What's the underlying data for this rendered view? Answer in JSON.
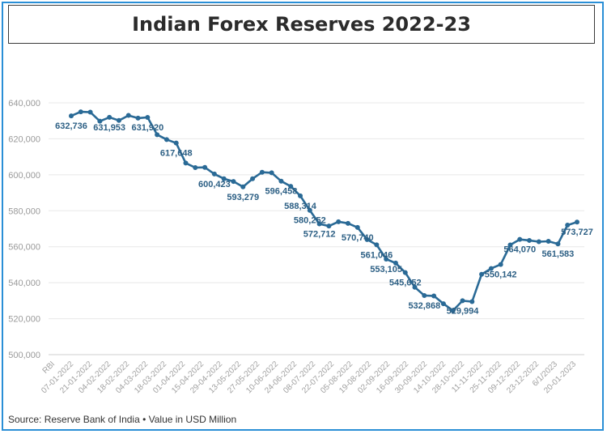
{
  "header": {
    "title": "Indian Forex Reserves 2022-23"
  },
  "footer": {
    "source": "Source: Reserve Bank of India • Value in USD Million"
  },
  "colors": {
    "line": "#2a6a96",
    "frame": "#2a8fd6",
    "grid": "#e8e8e8",
    "label": "#2c5f84"
  },
  "chart_data": {
    "type": "line",
    "title": "Indian Forex Reserves 2022-23",
    "xlabel": "",
    "ylabel": "",
    "ylim": [
      500000,
      640000
    ],
    "yticks": [
      500000,
      520000,
      540000,
      560000,
      580000,
      600000,
      620000,
      640000
    ],
    "ytick_labels": [
      "500,000",
      "520,000",
      "540,000",
      "560,000",
      "580,000",
      "600,000",
      "620,000",
      "640,000"
    ],
    "grid": true,
    "legend": "none",
    "xtick_labels": [
      "RBI",
      "07-01-2022",
      "21-01-2022",
      "04-02-2022",
      "18-02-2022",
      "04-03-2022",
      "18-03-2022",
      "01-04-2022",
      "15-04-2022",
      "29-04-2022",
      "13-05-2022",
      "27-05-2022",
      "10-06-2022",
      "24-06-2022",
      "08-07-2022",
      "22-07-2022",
      "05-08-2022",
      "19-08-2022",
      "02-09-2022",
      "16-09-2022",
      "30-09-2022",
      "14-10-2022",
      "28-10-2022",
      "11-11-2022",
      "25-11-2022",
      "09-12-2022",
      "23-12-2022",
      "6/1/2023",
      "20-01-2023"
    ],
    "series": [
      {
        "values": [
          632736,
          635000,
          634800,
          629800,
          631953,
          630200,
          633000,
          631500,
          631920,
          622300,
          619600,
          617648,
          606500,
          604000,
          604100,
          600423,
          597800,
          596300,
          593279,
          597800,
          601400,
          601100,
          596458,
          593600,
          588314,
          580252,
          572712,
          571500,
          573900,
          573000,
          570740,
          564000,
          561046,
          553105,
          550900,
          545652,
          537500,
          532868,
          532660,
          528300,
          524500,
          529994,
          529500,
          544700,
          547900,
          550142,
          561000,
          564070,
          563500,
          562800,
          563000,
          561583,
          572000,
          573727
        ]
      }
    ],
    "data_labels": [
      {
        "index": 0,
        "text": "632,736"
      },
      {
        "index": 4,
        "text": "631,953"
      },
      {
        "index": 8,
        "text": "631,920"
      },
      {
        "index": 11,
        "text": "617,648"
      },
      {
        "index": 15,
        "text": "600,423"
      },
      {
        "index": 18,
        "text": "593,279"
      },
      {
        "index": 22,
        "text": "596,458"
      },
      {
        "index": 24,
        "text": "588,314"
      },
      {
        "index": 25,
        "text": "580,252"
      },
      {
        "index": 26,
        "text": "572,712"
      },
      {
        "index": 30,
        "text": "570,740"
      },
      {
        "index": 32,
        "text": "561,046"
      },
      {
        "index": 33,
        "text": "553,105"
      },
      {
        "index": 35,
        "text": "545,652"
      },
      {
        "index": 37,
        "text": "532,868"
      },
      {
        "index": 41,
        "text": "529,994"
      },
      {
        "index": 45,
        "text": "550,142"
      },
      {
        "index": 47,
        "text": "564,070"
      },
      {
        "index": 51,
        "text": "561,583"
      },
      {
        "index": 53,
        "text": "573,727"
      }
    ]
  }
}
